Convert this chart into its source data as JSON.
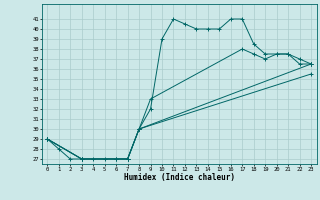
{
  "xlabel": "Humidex (Indice chaleur)",
  "bg_color": "#cce8e8",
  "grid_color": "#aacccc",
  "line_color": "#006666",
  "xlim": [
    -0.5,
    23.5
  ],
  "ylim": [
    26.5,
    42.5
  ],
  "xticks": [
    0,
    1,
    2,
    3,
    4,
    5,
    6,
    7,
    8,
    9,
    10,
    11,
    12,
    13,
    14,
    15,
    16,
    17,
    18,
    19,
    20,
    21,
    22,
    23
  ],
  "yticks": [
    27,
    28,
    29,
    30,
    31,
    32,
    33,
    34,
    35,
    36,
    37,
    38,
    39,
    40,
    41
  ],
  "line1_x": [
    0,
    1,
    2,
    3,
    4,
    5,
    6,
    7,
    8,
    9,
    10,
    11,
    12,
    13,
    14,
    15,
    16,
    17,
    18,
    19,
    20,
    21,
    22,
    23
  ],
  "line1_y": [
    29,
    28,
    27,
    27,
    27,
    27,
    27,
    27,
    30,
    32,
    39,
    41,
    40.5,
    40,
    40,
    40,
    41,
    41,
    38.5,
    37.5,
    37.5,
    37.5,
    36.5,
    36.5
  ],
  "line2_x": [
    0,
    3,
    6,
    7,
    8,
    9,
    17,
    18,
    19,
    20,
    21,
    22,
    23
  ],
  "line2_y": [
    29,
    27,
    27,
    27,
    30,
    33,
    38,
    37.5,
    37,
    37.5,
    37.5,
    37,
    36.5
  ],
  "line3_x": [
    0,
    3,
    7,
    8,
    23
  ],
  "line3_y": [
    29,
    27,
    27,
    30,
    36.5
  ],
  "line4_x": [
    0,
    3,
    7,
    8,
    23
  ],
  "line4_y": [
    29,
    27,
    27,
    30,
    35.5
  ]
}
